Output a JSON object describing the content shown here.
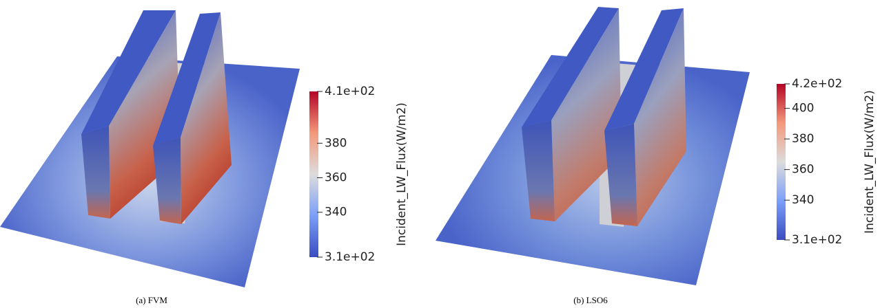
{
  "panels": [
    {
      "caption": "(a) FVM",
      "colorbar": {
        "label": "Incident_LW_Flux(W/m2)",
        "range": [
          314,
          410
        ],
        "ticks": [
          {
            "value": 314,
            "label": "3.1e+02"
          },
          340,
          360,
          380,
          {
            "value": 410,
            "label": "4.1e+02"
          }
        ]
      }
    },
    {
      "caption": "(b) LSO6",
      "colorbar": {
        "label": "Incident_LW_Flux(W/m2)",
        "range": [
          314,
          416
        ],
        "ticks": [
          {
            "value": 314,
            "label": "3.1e+02"
          },
          340,
          360,
          380,
          400,
          {
            "value": 416,
            "label": "4.2e+02"
          }
        ]
      }
    }
  ]
}
